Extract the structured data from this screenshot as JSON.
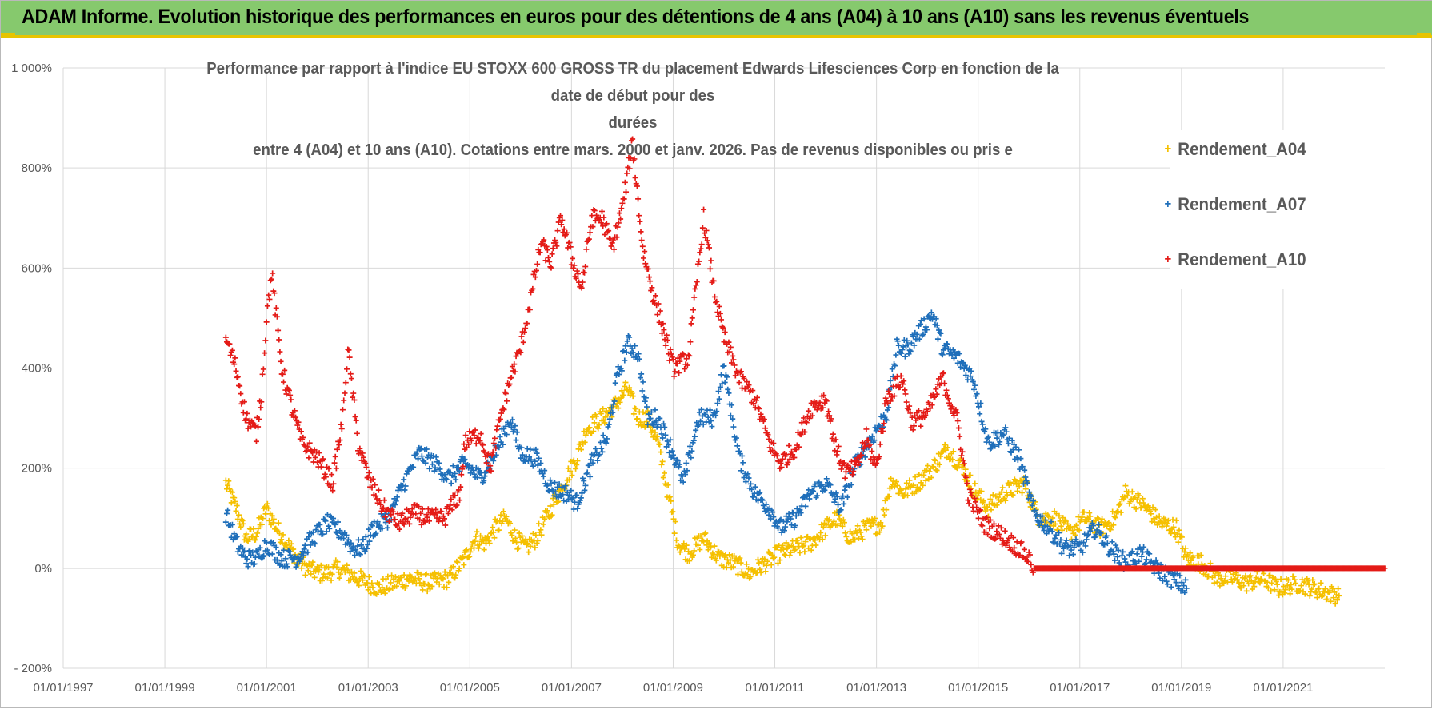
{
  "header": {
    "title": "ADAM Informe. Evolution historique des performances en euros pour des détentions de 4 ans (A04) à 10 ans (A10) sans les revenus éventuels"
  },
  "colors": {
    "banner": "#86c96d",
    "banner_border": "#e7c400",
    "grid": "#d9d9d9",
    "text": "#595959"
  },
  "chart_data": {
    "type": "scatter",
    "title_lines": [
      "Performance par rapport à l'indice EU STOXX 600 GROSS TR  du placement Edwards Lifesciences Corp en fonction de la date de début pour des",
      "durées",
      "entre 4 (A04) et 10 ans (A10).  Cotations entre mars. 2000 et janv. 2026.  Pas de revenus disponibles ou pris e"
    ],
    "xlabel": "",
    "ylabel": "",
    "x_range": [
      1997.0,
      2023.0
    ],
    "ylim": [
      -200,
      1000
    ],
    "y_ticks": [
      -200,
      0,
      200,
      400,
      600,
      800,
      1000
    ],
    "y_tick_labels": [
      "- 200%",
      "0%",
      "200%",
      "400%",
      "600%",
      "800%",
      "1 000%"
    ],
    "x_ticks": [
      1997,
      1999,
      2001,
      2003,
      2005,
      2007,
      2009,
      2011,
      2013,
      2015,
      2017,
      2019,
      2021
    ],
    "x_tick_labels": [
      "01/01/1997",
      "01/01/1999",
      "01/01/2001",
      "01/01/2003",
      "01/01/2005",
      "01/01/2007",
      "01/01/2009",
      "01/01/2011",
      "01/01/2013",
      "01/01/2015",
      "01/01/2017",
      "01/01/2019",
      "01/01/2021"
    ],
    "legend_position": "top-right",
    "series": [
      {
        "name": "Rendement_A04",
        "color": "#f5c000",
        "points": [
          [
            2000.2,
            170
          ],
          [
            2000.4,
            120
          ],
          [
            2000.6,
            60
          ],
          [
            2000.8,
            70
          ],
          [
            2001.0,
            120
          ],
          [
            2001.2,
            80
          ],
          [
            2001.4,
            50
          ],
          [
            2001.6,
            20
          ],
          [
            2001.8,
            0
          ],
          [
            2002.0,
            -10
          ],
          [
            2002.2,
            -10
          ],
          [
            2002.4,
            0
          ],
          [
            2002.6,
            -10
          ],
          [
            2002.8,
            -20
          ],
          [
            2003.0,
            -30
          ],
          [
            2003.2,
            -40
          ],
          [
            2003.5,
            -30
          ],
          [
            2003.8,
            -20
          ],
          [
            2004.2,
            -30
          ],
          [
            2004.6,
            -20
          ],
          [
            2004.9,
            20
          ],
          [
            2005.1,
            60
          ],
          [
            2005.3,
            50
          ],
          [
            2005.5,
            80
          ],
          [
            2005.7,
            100
          ],
          [
            2005.9,
            60
          ],
          [
            2006.1,
            40
          ],
          [
            2006.3,
            60
          ],
          [
            2006.6,
            120
          ],
          [
            2006.9,
            180
          ],
          [
            2007.1,
            220
          ],
          [
            2007.3,
            280
          ],
          [
            2007.6,
            300
          ],
          [
            2007.9,
            330
          ],
          [
            2008.1,
            360
          ],
          [
            2008.3,
            300
          ],
          [
            2008.5,
            300
          ],
          [
            2008.7,
            250
          ],
          [
            2008.9,
            150
          ],
          [
            2009.1,
            50
          ],
          [
            2009.3,
            30
          ],
          [
            2009.6,
            60
          ],
          [
            2009.9,
            20
          ],
          [
            2010.2,
            10
          ],
          [
            2010.5,
            -10
          ],
          [
            2010.8,
            10
          ],
          [
            2011.1,
            30
          ],
          [
            2011.4,
            40
          ],
          [
            2011.7,
            50
          ],
          [
            2011.9,
            70
          ],
          [
            2012.2,
            100
          ],
          [
            2012.5,
            60
          ],
          [
            2012.8,
            80
          ],
          [
            2013.1,
            90
          ],
          [
            2013.3,
            180
          ],
          [
            2013.5,
            150
          ],
          [
            2013.8,
            170
          ],
          [
            2014.1,
            200
          ],
          [
            2014.4,
            240
          ],
          [
            2014.7,
            200
          ],
          [
            2014.9,
            160
          ],
          [
            2015.2,
            120
          ],
          [
            2015.5,
            150
          ],
          [
            2015.9,
            170
          ],
          [
            2016.2,
            100
          ],
          [
            2016.5,
            100
          ],
          [
            2016.8,
            70
          ],
          [
            2017.1,
            100
          ],
          [
            2017.4,
            80
          ],
          [
            2017.7,
            100
          ],
          [
            2017.9,
            150
          ],
          [
            2018.2,
            130
          ],
          [
            2018.6,
            90
          ],
          [
            2018.9,
            80
          ],
          [
            2019.1,
            20
          ],
          [
            2019.4,
            10
          ],
          [
            2019.7,
            -20
          ],
          [
            2020.0,
            -20
          ],
          [
            2020.3,
            -30
          ],
          [
            2020.6,
            -20
          ],
          [
            2020.9,
            -40
          ],
          [
            2021.3,
            -30
          ],
          [
            2021.6,
            -40
          ],
          [
            2021.9,
            -50
          ],
          [
            2022.1,
            -55
          ]
        ]
      },
      {
        "name": "Rendement_A07",
        "color": "#1f6fba",
        "points": [
          [
            2000.2,
            110
          ],
          [
            2000.4,
            50
          ],
          [
            2000.6,
            20
          ],
          [
            2000.8,
            20
          ],
          [
            2001.0,
            50
          ],
          [
            2001.3,
            20
          ],
          [
            2001.6,
            20
          ],
          [
            2001.9,
            60
          ],
          [
            2002.2,
            90
          ],
          [
            2002.5,
            70
          ],
          [
            2002.7,
            40
          ],
          [
            2002.9,
            40
          ],
          [
            2003.1,
            80
          ],
          [
            2003.4,
            100
          ],
          [
            2003.7,
            170
          ],
          [
            2004.0,
            230
          ],
          [
            2004.3,
            210
          ],
          [
            2004.6,
            180
          ],
          [
            2004.9,
            210
          ],
          [
            2005.2,
            180
          ],
          [
            2005.5,
            230
          ],
          [
            2005.8,
            300
          ],
          [
            2006.0,
            230
          ],
          [
            2006.3,
            220
          ],
          [
            2006.6,
            160
          ],
          [
            2006.9,
            150
          ],
          [
            2007.1,
            130
          ],
          [
            2007.4,
            210
          ],
          [
            2007.7,
            260
          ],
          [
            2007.9,
            380
          ],
          [
            2008.1,
            450
          ],
          [
            2008.3,
            430
          ],
          [
            2008.5,
            300
          ],
          [
            2008.7,
            300
          ],
          [
            2009.0,
            230
          ],
          [
            2009.2,
            170
          ],
          [
            2009.5,
            300
          ],
          [
            2009.8,
            300
          ],
          [
            2010.0,
            400
          ],
          [
            2010.3,
            220
          ],
          [
            2010.6,
            150
          ],
          [
            2010.9,
            120
          ],
          [
            2011.1,
            80
          ],
          [
            2011.4,
            100
          ],
          [
            2011.7,
            150
          ],
          [
            2012.0,
            170
          ],
          [
            2012.3,
            120
          ],
          [
            2012.6,
            210
          ],
          [
            2012.9,
            260
          ],
          [
            2013.2,
            310
          ],
          [
            2013.4,
            440
          ],
          [
            2013.6,
            440
          ],
          [
            2013.9,
            480
          ],
          [
            2014.1,
            510
          ],
          [
            2014.3,
            440
          ],
          [
            2014.6,
            420
          ],
          [
            2014.9,
            380
          ],
          [
            2015.2,
            250
          ],
          [
            2015.5,
            270
          ],
          [
            2015.8,
            220
          ],
          [
            2016.1,
            110
          ],
          [
            2016.4,
            80
          ],
          [
            2016.7,
            40
          ],
          [
            2017.0,
            40
          ],
          [
            2017.3,
            80
          ],
          [
            2017.6,
            40
          ],
          [
            2017.9,
            10
          ],
          [
            2018.2,
            30
          ],
          [
            2018.5,
            0
          ],
          [
            2018.8,
            -20
          ],
          [
            2019.1,
            -40
          ]
        ]
      },
      {
        "name": "Rendement_A10",
        "color": "#e41b17",
        "points": [
          [
            2000.2,
            460
          ],
          [
            2000.4,
            400
          ],
          [
            2000.6,
            300
          ],
          [
            2000.8,
            270
          ],
          [
            2000.9,
            350
          ],
          [
            2001.0,
            500
          ],
          [
            2001.1,
            590
          ],
          [
            2001.3,
            400
          ],
          [
            2001.5,
            320
          ],
          [
            2001.7,
            250
          ],
          [
            2002.0,
            220
          ],
          [
            2002.3,
            170
          ],
          [
            2002.5,
            300
          ],
          [
            2002.6,
            440
          ],
          [
            2002.8,
            250
          ],
          [
            2003.0,
            180
          ],
          [
            2003.3,
            120
          ],
          [
            2003.6,
            90
          ],
          [
            2003.9,
            110
          ],
          [
            2004.2,
            100
          ],
          [
            2004.5,
            100
          ],
          [
            2004.8,
            150
          ],
          [
            2004.9,
            250
          ],
          [
            2005.2,
            270
          ],
          [
            2005.4,
            200
          ],
          [
            2005.6,
            300
          ],
          [
            2005.8,
            380
          ],
          [
            2006.0,
            440
          ],
          [
            2006.2,
            540
          ],
          [
            2006.4,
            650
          ],
          [
            2006.6,
            610
          ],
          [
            2006.8,
            700
          ],
          [
            2007.0,
            620
          ],
          [
            2007.2,
            560
          ],
          [
            2007.4,
            700
          ],
          [
            2007.6,
            700
          ],
          [
            2007.8,
            640
          ],
          [
            2008.0,
            720
          ],
          [
            2008.2,
            850
          ],
          [
            2008.4,
            640
          ],
          [
            2008.6,
            550
          ],
          [
            2008.8,
            480
          ],
          [
            2009.0,
            400
          ],
          [
            2009.3,
            420
          ],
          [
            2009.6,
            700
          ],
          [
            2009.8,
            560
          ],
          [
            2010.0,
            460
          ],
          [
            2010.3,
            380
          ],
          [
            2010.6,
            340
          ],
          [
            2010.9,
            250
          ],
          [
            2011.1,
            210
          ],
          [
            2011.4,
            240
          ],
          [
            2011.7,
            320
          ],
          [
            2012.0,
            340
          ],
          [
            2012.2,
            240
          ],
          [
            2012.4,
            190
          ],
          [
            2012.6,
            200
          ],
          [
            2012.8,
            260
          ],
          [
            2013.0,
            200
          ],
          [
            2013.2,
            340
          ],
          [
            2013.5,
            380
          ],
          [
            2013.7,
            290
          ],
          [
            2014.0,
            310
          ],
          [
            2014.3,
            380
          ],
          [
            2014.6,
            290
          ],
          [
            2014.8,
            150
          ],
          [
            2015.1,
            90
          ],
          [
            2015.4,
            70
          ],
          [
            2015.8,
            40
          ],
          [
            2016.0,
            20
          ],
          [
            2016.1,
            0
          ],
          [
            2017.0,
            0
          ],
          [
            2018.0,
            0
          ],
          [
            2019.0,
            0
          ],
          [
            2020.0,
            0
          ],
          [
            2021.0,
            0
          ],
          [
            2022.0,
            0
          ],
          [
            2023.0,
            0
          ]
        ]
      }
    ]
  }
}
